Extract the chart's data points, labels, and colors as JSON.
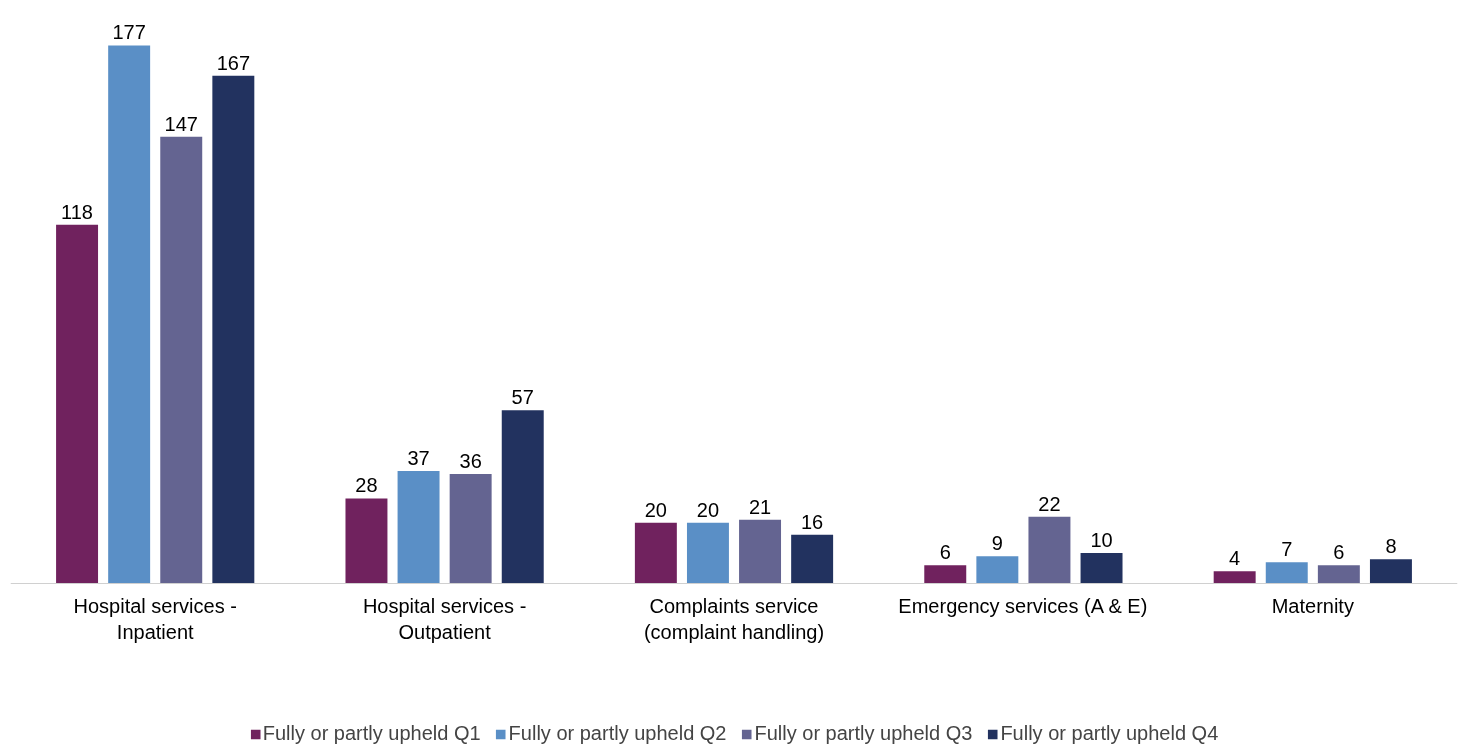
{
  "chart_data": {
    "type": "bar",
    "categories": [
      "Hospital services - Inpatient",
      "Hospital services - Outpatient",
      "Complaints service (complaint handling)",
      "Emergency services (A & E)",
      "Maternity"
    ],
    "series": [
      {
        "name": "Fully or partly upheld Q1",
        "color": "#70225e",
        "values": [
          118,
          28,
          20,
          6,
          4
        ]
      },
      {
        "name": "Fully or partly upheld Q2",
        "color": "#5a8fc6",
        "values": [
          177,
          37,
          20,
          9,
          7
        ]
      },
      {
        "name": "Fully or partly upheld Q3",
        "color": "#646491",
        "values": [
          147,
          36,
          21,
          22,
          6
        ]
      },
      {
        "name": "Fully or partly upheld Q4",
        "color": "#22325f",
        "values": [
          167,
          57,
          16,
          10,
          8
        ]
      }
    ],
    "data_labels": true,
    "grid": false,
    "legend": "bottom"
  }
}
